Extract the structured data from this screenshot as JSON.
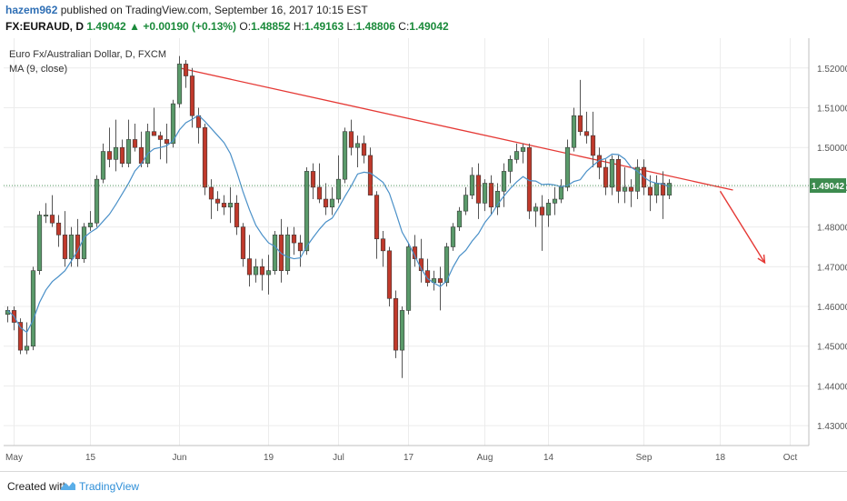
{
  "header": {
    "user": "hazem962",
    "published": "published on TradingView.com, September 16, 2017 10:15 EST",
    "symbol": "FX:EURAUD, D",
    "last": "1.49042",
    "change": "+0.00190 (+0.13%)",
    "o_label": "O:",
    "o_value": "1.48852",
    "h_label": "H:",
    "h_value": "1.49163",
    "l_label": "L:",
    "l_value": "1.48806",
    "c_label": "C:",
    "c_value": "1.49042"
  },
  "legend": {
    "title": "Euro Fx/Australian Dollar, D, FXCM",
    "ma": "MA (9, close)"
  },
  "footer": {
    "created_with": "Created with",
    "brand": "TradingView"
  },
  "colors": {
    "up": "#5a9a6a",
    "down": "#c0392b",
    "ma": "#4a90c8",
    "trend": "#e53935",
    "price_line": "#3a8a4a",
    "price_tag": "#3d8b4f"
  },
  "chart_data": {
    "type": "candlestick",
    "ylim": [
      1.425,
      1.5275
    ],
    "y_ticks": [
      "1.43000",
      "1.44000",
      "1.45000",
      "1.46000",
      "1.47000",
      "1.48000",
      "1.49000",
      "1.50000",
      "1.51000",
      "1.52000"
    ],
    "x_ticks": [
      {
        "label": "May",
        "i": 1
      },
      {
        "label": "15",
        "i": 13
      },
      {
        "label": "Jun",
        "i": 27
      },
      {
        "label": "19",
        "i": 41
      },
      {
        "label": "Jul",
        "i": 52
      },
      {
        "label": "17",
        "i": 63
      },
      {
        "label": "Aug",
        "i": 75
      },
      {
        "label": "14",
        "i": 85
      },
      {
        "label": "Sep",
        "i": 100
      },
      {
        "label": "18",
        "i": 112
      },
      {
        "label": "Oct",
        "i": 123
      }
    ],
    "last_price": "1.49042",
    "last_price_value": 1.49042,
    "candles": [
      [
        1.458,
        1.46,
        1.456,
        1.459
      ],
      [
        1.459,
        1.46,
        1.454,
        1.456
      ],
      [
        1.456,
        1.457,
        1.448,
        1.449
      ],
      [
        1.449,
        1.456,
        1.448,
        1.45
      ],
      [
        1.45,
        1.47,
        1.449,
        1.469
      ],
      [
        1.469,
        1.484,
        1.468,
        1.483
      ],
      [
        1.483,
        1.486,
        1.481,
        1.483
      ],
      [
        1.483,
        1.488,
        1.48,
        1.481
      ],
      [
        1.481,
        1.483,
        1.475,
        1.478
      ],
      [
        1.478,
        1.484,
        1.47,
        1.472
      ],
      [
        1.472,
        1.48,
        1.47,
        1.478
      ],
      [
        1.478,
        1.482,
        1.47,
        1.472
      ],
      [
        1.472,
        1.481,
        1.471,
        1.48
      ],
      [
        1.48,
        1.484,
        1.479,
        1.481
      ],
      [
        1.481,
        1.493,
        1.48,
        1.492
      ],
      [
        1.492,
        1.501,
        1.491,
        1.499
      ],
      [
        1.499,
        1.505,
        1.495,
        1.497
      ],
      [
        1.497,
        1.507,
        1.494,
        1.5
      ],
      [
        1.5,
        1.502,
        1.495,
        1.496
      ],
      [
        1.496,
        1.507,
        1.495,
        1.502
      ],
      [
        1.502,
        1.506,
        1.499,
        1.5
      ],
      [
        1.5,
        1.504,
        1.495,
        1.496
      ],
      [
        1.496,
        1.506,
        1.495,
        1.504
      ],
      [
        1.504,
        1.51,
        1.503,
        1.503
      ],
      [
        1.503,
        1.504,
        1.497,
        1.502
      ],
      [
        1.502,
        1.506,
        1.496,
        1.501
      ],
      [
        1.501,
        1.512,
        1.5,
        1.511
      ],
      [
        1.511,
        1.523,
        1.51,
        1.521
      ],
      [
        1.521,
        1.522,
        1.515,
        1.518
      ],
      [
        1.518,
        1.52,
        1.505,
        1.508
      ],
      [
        1.508,
        1.51,
        1.501,
        1.505
      ],
      [
        1.505,
        1.506,
        1.488,
        1.49
      ],
      [
        1.49,
        1.492,
        1.482,
        1.487
      ],
      [
        1.487,
        1.489,
        1.484,
        1.486
      ],
      [
        1.486,
        1.488,
        1.483,
        1.485
      ],
      [
        1.485,
        1.49,
        1.481,
        1.486
      ],
      [
        1.486,
        1.488,
        1.478,
        1.48
      ],
      [
        1.48,
        1.481,
        1.47,
        1.472
      ],
      [
        1.472,
        1.478,
        1.465,
        1.468
      ],
      [
        1.468,
        1.472,
        1.466,
        1.47
      ],
      [
        1.47,
        1.472,
        1.464,
        1.468
      ],
      [
        1.468,
        1.473,
        1.463,
        1.469
      ],
      [
        1.469,
        1.479,
        1.468,
        1.478
      ],
      [
        1.478,
        1.482,
        1.466,
        1.469
      ],
      [
        1.469,
        1.48,
        1.468,
        1.478
      ],
      [
        1.478,
        1.48,
        1.473,
        1.476
      ],
      [
        1.476,
        1.478,
        1.47,
        1.474
      ],
      [
        1.474,
        1.495,
        1.473,
        1.494
      ],
      [
        1.494,
        1.496,
        1.487,
        1.49
      ],
      [
        1.49,
        1.496,
        1.486,
        1.487
      ],
      [
        1.487,
        1.491,
        1.483,
        1.485
      ],
      [
        1.485,
        1.49,
        1.483,
        1.487
      ],
      [
        1.487,
        1.498,
        1.486,
        1.492
      ],
      [
        1.492,
        1.505,
        1.491,
        1.504
      ],
      [
        1.504,
        1.507,
        1.498,
        1.5
      ],
      [
        1.5,
        1.503,
        1.495,
        1.501
      ],
      [
        1.501,
        1.503,
        1.496,
        1.498
      ],
      [
        1.498,
        1.5,
        1.488,
        1.488
      ],
      [
        1.488,
        1.489,
        1.472,
        1.477
      ],
      [
        1.477,
        1.479,
        1.47,
        1.474
      ],
      [
        1.474,
        1.475,
        1.46,
        1.462
      ],
      [
        1.462,
        1.464,
        1.447,
        1.449
      ],
      [
        1.449,
        1.46,
        1.442,
        1.459
      ],
      [
        1.459,
        1.476,
        1.458,
        1.475
      ],
      [
        1.475,
        1.478,
        1.47,
        1.472
      ],
      [
        1.472,
        1.477,
        1.466,
        1.469
      ],
      [
        1.469,
        1.472,
        1.465,
        1.466
      ],
      [
        1.466,
        1.469,
        1.464,
        1.467
      ],
      [
        1.467,
        1.47,
        1.459,
        1.466
      ],
      [
        1.466,
        1.476,
        1.465,
        1.475
      ],
      [
        1.475,
        1.481,
        1.474,
        1.48
      ],
      [
        1.48,
        1.485,
        1.479,
        1.484
      ],
      [
        1.484,
        1.49,
        1.483,
        1.488
      ],
      [
        1.488,
        1.495,
        1.487,
        1.493
      ],
      [
        1.493,
        1.496,
        1.482,
        1.486
      ],
      [
        1.486,
        1.492,
        1.484,
        1.491
      ],
      [
        1.491,
        1.493,
        1.483,
        1.485
      ],
      [
        1.485,
        1.491,
        1.483,
        1.489
      ],
      [
        1.489,
        1.496,
        1.485,
        1.494
      ],
      [
        1.494,
        1.498,
        1.491,
        1.497
      ],
      [
        1.497,
        1.501,
        1.496,
        1.499
      ],
      [
        1.499,
        1.501,
        1.496,
        1.5
      ],
      [
        1.5,
        1.501,
        1.482,
        1.484
      ],
      [
        1.484,
        1.486,
        1.48,
        1.485
      ],
      [
        1.485,
        1.488,
        1.474,
        1.483
      ],
      [
        1.483,
        1.487,
        1.48,
        1.486
      ],
      [
        1.486,
        1.49,
        1.483,
        1.487
      ],
      [
        1.487,
        1.492,
        1.486,
        1.49
      ],
      [
        1.49,
        1.502,
        1.489,
        1.5
      ],
      [
        1.5,
        1.51,
        1.499,
        1.508
      ],
      [
        1.508,
        1.517,
        1.503,
        1.504
      ],
      [
        1.504,
        1.509,
        1.501,
        1.503
      ],
      [
        1.503,
        1.509,
        1.495,
        1.498
      ],
      [
        1.498,
        1.5,
        1.492,
        1.495
      ],
      [
        1.495,
        1.497,
        1.488,
        1.49
      ],
      [
        1.49,
        1.498,
        1.488,
        1.497
      ],
      [
        1.497,
        1.498,
        1.486,
        1.489
      ],
      [
        1.489,
        1.495,
        1.486,
        1.49
      ],
      [
        1.49,
        1.492,
        1.485,
        1.489
      ],
      [
        1.489,
        1.497,
        1.487,
        1.495
      ],
      [
        1.495,
        1.497,
        1.488,
        1.49
      ],
      [
        1.49,
        1.493,
        1.484,
        1.488
      ],
      [
        1.488,
        1.493,
        1.486,
        1.491
      ],
      [
        1.491,
        1.494,
        1.482,
        1.488
      ],
      [
        1.488,
        1.492,
        1.487,
        1.491
      ]
    ],
    "ma_period": 9,
    "ma_label": "MA (9, close)",
    "trendline": [
      {
        "i": 27,
        "price": 1.52
      },
      {
        "i": 114,
        "price": 1.4893
      }
    ],
    "arrow": [
      {
        "i": 112,
        "price": 1.489
      },
      {
        "i": 119,
        "price": 1.471
      }
    ]
  }
}
